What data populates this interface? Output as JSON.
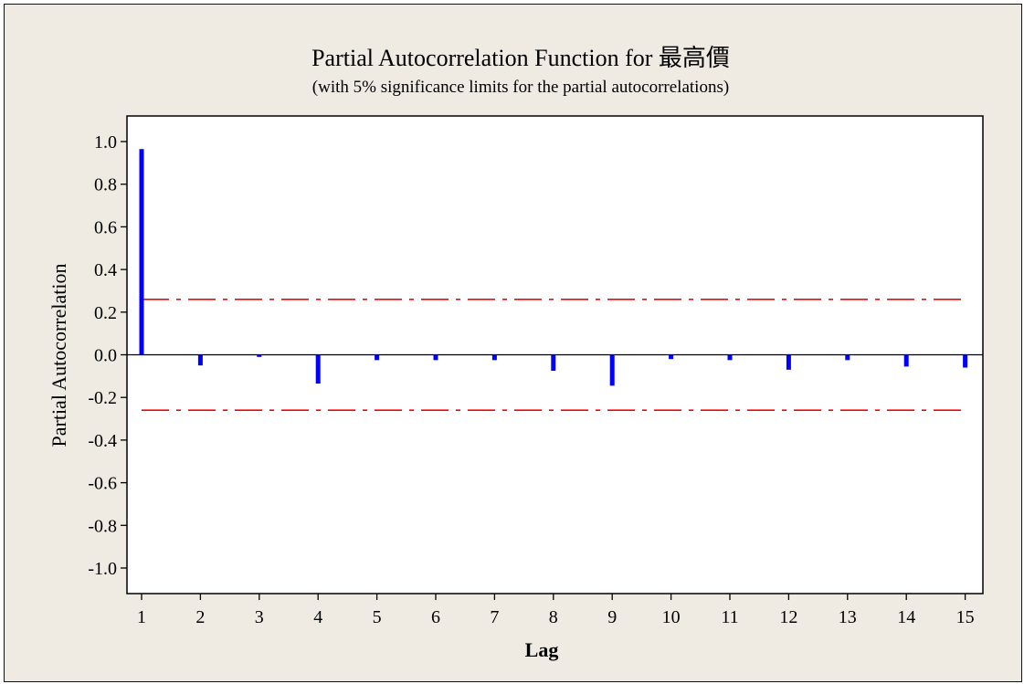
{
  "chart_data": {
    "type": "bar",
    "title": "Partial Autocorrelation Function for 最高價",
    "subtitle": "(with 5% significance limits for the partial autocorrelations)",
    "xlabel": "Lag",
    "ylabel": "Partial Autocorrelation",
    "x": [
      1,
      2,
      3,
      4,
      5,
      6,
      7,
      8,
      9,
      10,
      11,
      12,
      13,
      14,
      15
    ],
    "values": [
      0.965,
      -0.05,
      -0.01,
      -0.135,
      -0.025,
      -0.025,
      -0.025,
      -0.075,
      -0.145,
      -0.02,
      -0.025,
      -0.07,
      -0.025,
      -0.055,
      -0.06
    ],
    "ylim": [
      -1.12,
      1.12
    ],
    "yticks": [
      "1.0",
      "0.8",
      "0.6",
      "0.4",
      "0.2",
      "0.0",
      "-0.2",
      "-0.4",
      "-0.6",
      "-0.8",
      "-1.0"
    ],
    "significance_limits": [
      0.26,
      -0.26
    ],
    "grid": false,
    "colors": {
      "bars": "#0000ff",
      "limits": "#ff0000",
      "background": "#efebe2",
      "plot_area": "#ffffff"
    }
  }
}
